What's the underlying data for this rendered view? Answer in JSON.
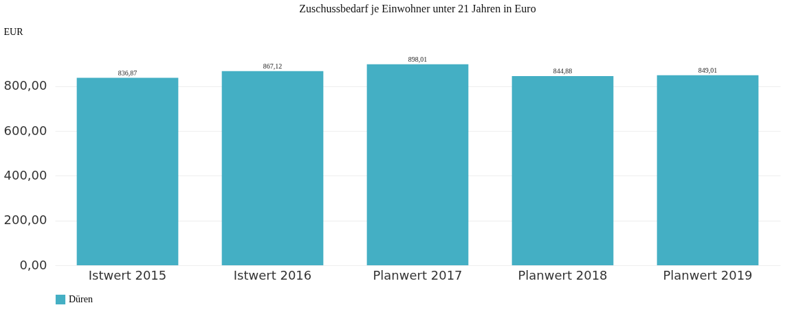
{
  "chart_data": {
    "type": "bar",
    "title": "Zuschussbedarf je Einwohner unter 21 Jahren in Euro",
    "ylabel": "EUR",
    "categories": [
      "Istwert 2015",
      "Istwert 2016",
      "Planwert 2017",
      "Planwert 2018",
      "Planwert 2019"
    ],
    "series": [
      {
        "name": "Düren",
        "color": "#44afc4",
        "values": [
          836.87,
          867.12,
          898.01,
          844.88,
          849.01
        ],
        "value_labels": [
          "836,87",
          "867,12",
          "898,01",
          "844,88",
          "849,01"
        ]
      }
    ],
    "ylim": [
      0,
      900
    ],
    "yticks": [
      {
        "value": 0,
        "label": "0,00"
      },
      {
        "value": 200,
        "label": "200,00"
      },
      {
        "value": 400,
        "label": "400,00"
      },
      {
        "value": 600,
        "label": "600,00"
      },
      {
        "value": 800,
        "label": "800,00"
      }
    ],
    "grid": "y",
    "legend": "bottom"
  }
}
